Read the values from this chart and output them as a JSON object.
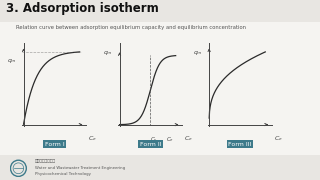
{
  "title": "3. Adsorption isotherm",
  "subtitle": "Relation curve between adsorption equilibrium capacity and equilibrium concentration",
  "bg_color": "#e8e6e2",
  "title_bar_color": "#cccccc",
  "white_area_color": "#f5f4f1",
  "form_labels": [
    "Form I",
    "Form II",
    "Form III"
  ],
  "form_label_bg": "#3d7a8a",
  "form_label_color": "#ffffff",
  "axis_color": "#444444",
  "curve_color": "#2a2a2a",
  "dashed_color": "#555555",
  "title_color": "#111111",
  "subtitle_color": "#555555",
  "footer_text1": "清华大学环境学院",
  "footer_text2": "Water and Wastewater Treatment Engineering",
  "footer_text3": "Physicochemical Technology",
  "title_fontsize": 8.5,
  "subtitle_fontsize": 3.8
}
